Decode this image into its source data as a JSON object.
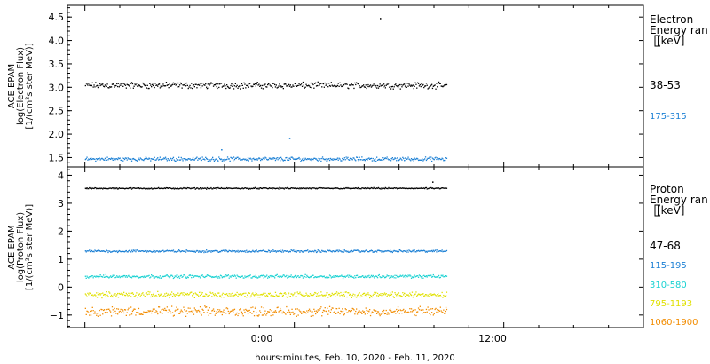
{
  "colors": {
    "black": "#000000",
    "blue": "#1a7fd4",
    "cyan": "#1ad2d2",
    "yellow": "#e0e000",
    "orange": "#f28c00",
    "frame": "#000000"
  },
  "x_axis": {
    "title": "hours:minutes, Feb. 10, 2020 - Feb. 11, 2020",
    "ticks": [
      "0:00",
      "12:00"
    ]
  },
  "chart_data": [
    {
      "type": "scatter",
      "name": "electron-panel",
      "ylabel": [
        "ACE EPAM",
        "log(Electron Flux)",
        "[1/(cm²s ster MeV)]"
      ],
      "ylim": [
        1.3,
        4.75
      ],
      "xlim": [
        -13,
        20
      ],
      "yticks": [
        1.5,
        2.0,
        2.5,
        3.0,
        3.5,
        4.0,
        4.5
      ],
      "yticklabels": [
        "1.5",
        "2.0",
        "2.5",
        "3.0",
        "3.5",
        "4.0",
        "4.5"
      ],
      "legend": {
        "title_lines": [
          "Electron",
          "Energy ran",
          "[keV]"
        ],
        "placement": "right"
      },
      "series": [
        {
          "label": "38-53",
          "color": "#000000",
          "mean": 3.05,
          "jitter": 0.08,
          "x_range": [
            -12,
            8.7
          ],
          "outliers": [
            [
              4.9,
              4.48
            ]
          ]
        },
        {
          "label": "175-315",
          "color": "#1a7fd4",
          "mean": 1.48,
          "jitter": 0.05,
          "x_range": [
            -12,
            8.7
          ],
          "outliers": [
            [
              -4.2,
              1.68
            ],
            [
              -0.3,
              1.92
            ]
          ]
        }
      ]
    },
    {
      "type": "scatter",
      "name": "proton-panel",
      "ylabel": [
        "ACE EPAM",
        "log(Proton Flux)",
        "[1/(cm²s ster MeV)]"
      ],
      "ylim": [
        -1.45,
        4.3
      ],
      "xlim": [
        -13,
        20
      ],
      "yticks": [
        -1,
        0,
        1,
        2,
        3,
        4
      ],
      "yticklabels": [
        "−1",
        "0",
        "1",
        "2",
        "3",
        "4"
      ],
      "legend": {
        "title_lines": [
          "Proton",
          "Energy ran",
          "[keV]"
        ],
        "placement": "right"
      },
      "series": [
        {
          "label": "47-68",
          "color": "#000000",
          "mean": 3.55,
          "jitter": 0.03,
          "x_range": [
            -12,
            8.7
          ],
          "outliers": [
            [
              7.9,
              3.78
            ]
          ]
        },
        {
          "label": "115-195",
          "color": "#1a7fd4",
          "mean": 1.3,
          "jitter": 0.05,
          "x_range": [
            -12,
            8.7
          ],
          "outliers": []
        },
        {
          "label": "310-580",
          "color": "#1ad2d2",
          "mean": 0.4,
          "jitter": 0.07,
          "x_range": [
            -12,
            8.7
          ],
          "outliers": []
        },
        {
          "label": "795-1193",
          "color": "#e0e000",
          "mean": -0.25,
          "jitter": 0.12,
          "x_range": [
            -12,
            8.7
          ],
          "outliers": []
        },
        {
          "label": "1060-1900",
          "color": "#f28c00",
          "mean": -0.85,
          "jitter": 0.2,
          "x_range": [
            -12,
            8.7
          ],
          "outliers": []
        }
      ]
    }
  ]
}
